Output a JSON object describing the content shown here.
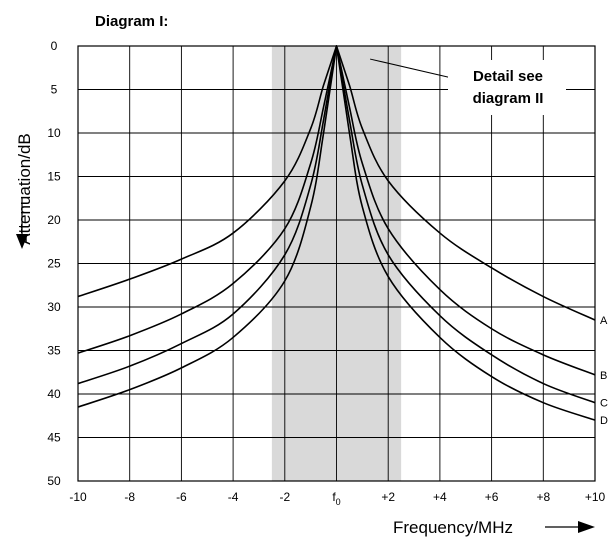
{
  "chart_data": {
    "type": "line",
    "title": "Diagram I:",
    "xlabel": "Frequency/MHz",
    "ylabel": "Attenuation/dB",
    "xlim": [
      -10,
      10
    ],
    "ylim": [
      0,
      50
    ],
    "y_inverted": true,
    "grid": true,
    "x_ticks": [
      {
        "value": -10,
        "label": "-10"
      },
      {
        "value": -8,
        "label": "-8"
      },
      {
        "value": -6,
        "label": "-6"
      },
      {
        "value": -4,
        "label": "-4"
      },
      {
        "value": -2,
        "label": "-2"
      },
      {
        "value": 0,
        "label": "f",
        "sub": "0"
      },
      {
        "value": 2,
        "label": "+2"
      },
      {
        "value": 4,
        "label": "+4"
      },
      {
        "value": 6,
        "label": "+6"
      },
      {
        "value": 8,
        "label": "+8"
      },
      {
        "value": 10,
        "label": "+10"
      }
    ],
    "y_ticks": [
      {
        "value": 0,
        "label": "0"
      },
      {
        "value": 5,
        "label": "5"
      },
      {
        "value": 10,
        "label": "10"
      },
      {
        "value": 15,
        "label": "15"
      },
      {
        "value": 20,
        "label": "20"
      },
      {
        "value": 25,
        "label": "25"
      },
      {
        "value": 30,
        "label": "30"
      },
      {
        "value": 35,
        "label": "35"
      },
      {
        "value": 40,
        "label": "40"
      },
      {
        "value": 45,
        "label": "45"
      },
      {
        "value": 50,
        "label": "50"
      }
    ],
    "shaded_band": {
      "x_from": -2.5,
      "x_to": 2.5,
      "color": "#d9d9d9"
    },
    "annotation": {
      "lines": [
        "Detail see",
        "diagram II"
      ],
      "points_to": {
        "x": 1.3,
        "y": 1.5
      }
    },
    "series": [
      {
        "name": "A",
        "x": [
          -10,
          -8,
          -6,
          -4,
          -2,
          -1,
          -0.5,
          0,
          0.5,
          1,
          2,
          4,
          6,
          8,
          10
        ],
        "y": [
          28.8,
          26.8,
          24.5,
          21.5,
          15.5,
          9.5,
          4.5,
          0,
          4.5,
          9.5,
          15.5,
          21.5,
          25.5,
          28.8,
          31.5
        ]
      },
      {
        "name": "B",
        "x": [
          -10,
          -8,
          -6,
          -4,
          -2,
          -1,
          -0.5,
          0,
          0.5,
          1,
          2,
          4,
          6,
          8,
          10
        ],
        "y": [
          35.3,
          33.3,
          30.8,
          27.3,
          21.0,
          13.5,
          7.0,
          0,
          7.0,
          13.5,
          21.0,
          28.0,
          32.5,
          35.5,
          37.8
        ]
      },
      {
        "name": "C",
        "x": [
          -10,
          -8,
          -6,
          -4,
          -2,
          -1,
          -0.5,
          0,
          0.5,
          1,
          2,
          4,
          6,
          8,
          10
        ],
        "y": [
          38.8,
          36.8,
          34.2,
          30.8,
          24.0,
          16.0,
          8.5,
          0,
          8.5,
          16.0,
          24.0,
          31.0,
          35.5,
          38.8,
          41.0
        ]
      },
      {
        "name": "D",
        "x": [
          -10,
          -8,
          -6,
          -4,
          -2,
          -1,
          -0.5,
          0,
          0.5,
          1,
          2,
          4,
          6,
          8,
          10
        ],
        "y": [
          41.5,
          39.5,
          37.0,
          33.5,
          27.0,
          18.5,
          10.0,
          0,
          10.0,
          18.5,
          26.5,
          33.5,
          38.0,
          41.0,
          43.0
        ]
      }
    ]
  }
}
